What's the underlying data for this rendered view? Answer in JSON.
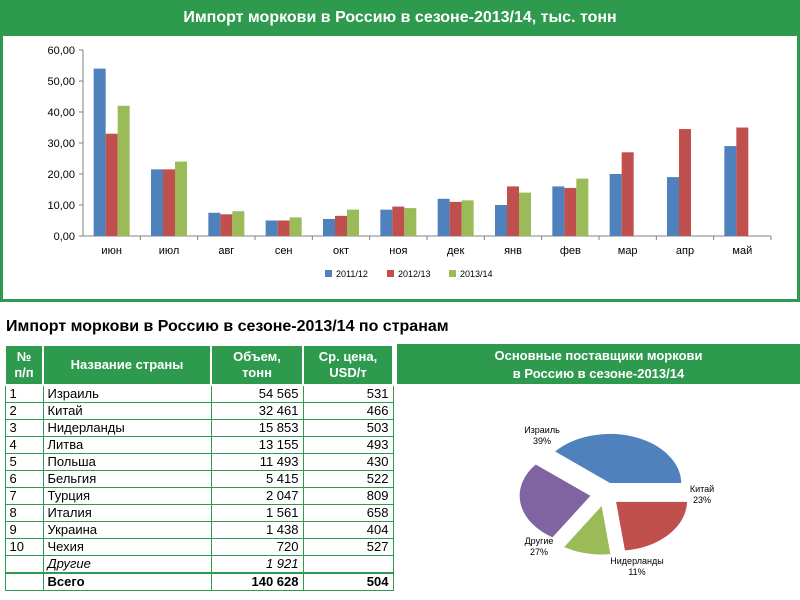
{
  "chart_data": [
    {
      "type": "bar",
      "title": "Импорт моркови в Россию в сезоне-2013/14, тыс. тонн",
      "categories": [
        "июн",
        "июл",
        "авг",
        "сен",
        "окт",
        "ноя",
        "дек",
        "янв",
        "фев",
        "мар",
        "апр",
        "май"
      ],
      "series": [
        {
          "name": "2011/12",
          "color": "#4f81bd",
          "values": [
            54.0,
            21.5,
            7.5,
            5.0,
            5.5,
            8.5,
            12.0,
            10.0,
            16.0,
            20.0,
            19.0,
            29.0
          ]
        },
        {
          "name": "2012/13",
          "color": "#c0504d",
          "values": [
            33.0,
            21.5,
            7.0,
            5.0,
            6.5,
            9.5,
            11.0,
            16.0,
            15.5,
            27.0,
            34.5,
            35.0
          ]
        },
        {
          "name": "2013/14",
          "color": "#9bbb59",
          "values": [
            42.0,
            24.0,
            8.0,
            6.0,
            8.5,
            9.0,
            11.5,
            14.0,
            18.5,
            null,
            null,
            null
          ]
        }
      ],
      "yticks": [
        "0,00",
        "10,00",
        "20,00",
        "30,00",
        "40,00",
        "50,00",
        "60,00"
      ],
      "ylim": [
        0,
        60
      ],
      "grid": false,
      "legend": "bottom"
    },
    {
      "type": "pie",
      "title": "Основные поставщики моркови в Россию в сезоне-2013/14",
      "title_lines": [
        "Основные поставщики моркови",
        "в Россию в сезоне-2013/14"
      ],
      "slices": [
        {
          "label": "Израиль",
          "pct_label": "39%",
          "value": 39,
          "color": "#4f81bd"
        },
        {
          "label": "Китай",
          "pct_label": "23%",
          "value": 23,
          "color": "#c0504d"
        },
        {
          "label": "Нидерланды",
          "pct_label": "11%",
          "value": 11,
          "color": "#9bbb59"
        },
        {
          "label": "Другие",
          "pct_label": "27%",
          "value": 27,
          "color": "#8064a2"
        }
      ]
    }
  ],
  "header": {
    "title": "Импорт моркови в Россию в сезоне-2013/14, тыс. тонн"
  },
  "table": {
    "title": "Импорт моркови в Россию в сезоне-2013/14 по странам",
    "headers": {
      "num": [
        "№",
        "п/п"
      ],
      "name": "Название страны",
      "volume": [
        "Объем,",
        "тонн"
      ],
      "price": [
        "Ср. цена,",
        "USD/т"
      ]
    },
    "rows": [
      {
        "num": "1",
        "name": "Израиль",
        "volume": "54 565",
        "price": "531"
      },
      {
        "num": "2",
        "name": "Китай",
        "volume": "32 461",
        "price": "466"
      },
      {
        "num": "3",
        "name": "Нидерланды",
        "volume": "15 853",
        "price": "503"
      },
      {
        "num": "4",
        "name": "Литва",
        "volume": "13 155",
        "price": "493"
      },
      {
        "num": "5",
        "name": "Польша",
        "volume": "11 493",
        "price": "430"
      },
      {
        "num": "6",
        "name": "Бельгия",
        "volume": "5 415",
        "price": "522"
      },
      {
        "num": "7",
        "name": "Турция",
        "volume": "2 047",
        "price": "809"
      },
      {
        "num": "8",
        "name": "Италия",
        "volume": "1 561",
        "price": "658"
      },
      {
        "num": "9",
        "name": "Украина",
        "volume": "1 438",
        "price": "404"
      },
      {
        "num": "10",
        "name": "Чехия",
        "volume": "720",
        "price": "527"
      }
    ],
    "other": {
      "name": "Другие",
      "volume": "1 921"
    },
    "total": {
      "name": "Всего",
      "volume": "140 628",
      "price": "504"
    }
  }
}
